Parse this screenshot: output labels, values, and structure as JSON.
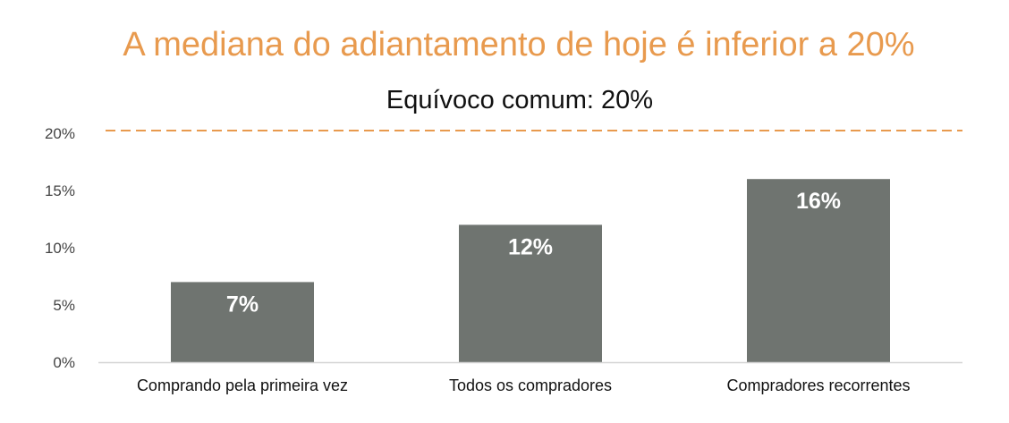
{
  "chart_data": {
    "type": "bar",
    "title": "A mediana do adiantamento de hoje é inferior a 20%",
    "categories": [
      "Comprando pela primeira vez",
      "Todos os compradores",
      "Compradores recorrentes"
    ],
    "values": [
      7,
      12,
      16
    ],
    "data_labels": [
      "7%",
      "12%",
      "16%"
    ],
    "ylim": [
      0,
      20
    ],
    "y_ticks": [
      0,
      5,
      10,
      15,
      20
    ],
    "y_tick_labels": [
      "0%",
      "5%",
      "10%",
      "15%",
      "20%"
    ],
    "reference_line": {
      "value": 20,
      "label": "Equívoco comum: 20%",
      "color": "#e89a4e",
      "style": "dashed"
    },
    "bar_color": "#6f7470",
    "title_color": "#e89a4e",
    "grid": false,
    "legend": "none"
  }
}
